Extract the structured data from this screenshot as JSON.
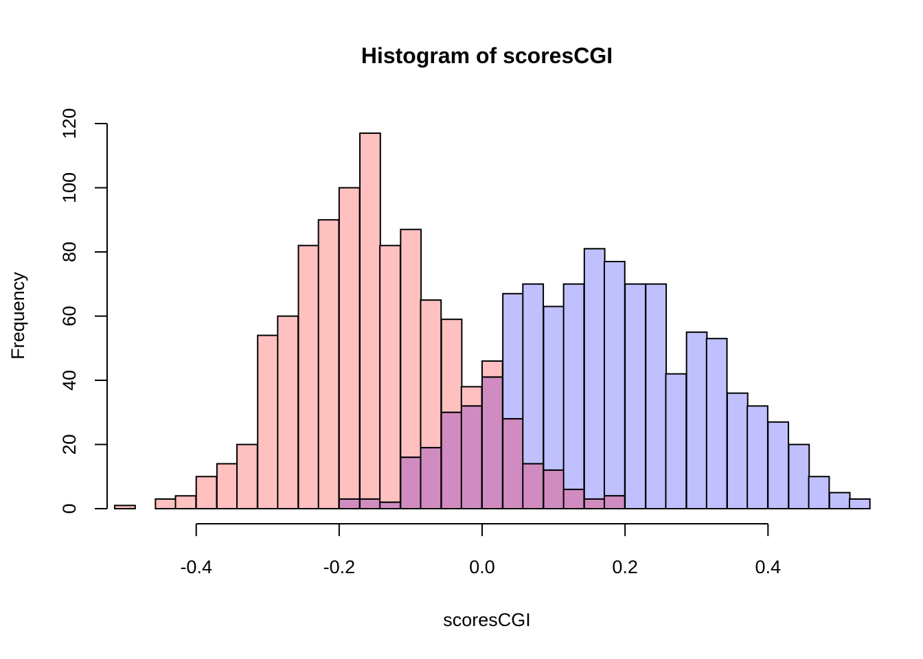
{
  "chart_data": {
    "type": "bar",
    "title": "Histogram of scoresCGI",
    "xlabel": "scoresCGI",
    "ylabel": "Frequency",
    "xlim": [
      -0.54,
      0.54
    ],
    "ylim": [
      0,
      120
    ],
    "x_ticks": [
      "-0.4",
      "-0.2",
      "0.0",
      "0.2",
      "0.4"
    ],
    "x_tick_values": [
      -0.4,
      -0.2,
      0.0,
      0.2,
      0.4
    ],
    "y_ticks": [
      "0",
      "20",
      "40",
      "60",
      "80",
      "100",
      "120"
    ],
    "y_tick_values": [
      0,
      20,
      40,
      60,
      80,
      100,
      120
    ],
    "bin_width": 0.0286,
    "series": [
      {
        "color": "#FFC0C0",
        "bins": [
          {
            "x0": -0.514,
            "value": 1
          },
          {
            "x0": -0.457,
            "value": 3
          },
          {
            "x0": -0.429,
            "value": 4
          },
          {
            "x0": -0.4,
            "value": 10
          },
          {
            "x0": -0.371,
            "value": 14
          },
          {
            "x0": -0.343,
            "value": 20
          },
          {
            "x0": -0.314,
            "value": 54
          },
          {
            "x0": -0.286,
            "value": 60
          },
          {
            "x0": -0.257,
            "value": 82
          },
          {
            "x0": -0.229,
            "value": 90
          },
          {
            "x0": -0.2,
            "value": 100
          },
          {
            "x0": -0.171,
            "value": 117
          },
          {
            "x0": -0.143,
            "value": 82
          },
          {
            "x0": -0.114,
            "value": 87
          },
          {
            "x0": -0.086,
            "value": 65
          },
          {
            "x0": -0.057,
            "value": 59
          },
          {
            "x0": -0.029,
            "value": 38
          },
          {
            "x0": 0.0,
            "value": 46
          },
          {
            "x0": 0.029,
            "value": 28
          },
          {
            "x0": 0.057,
            "value": 14
          },
          {
            "x0": 0.086,
            "value": 12
          },
          {
            "x0": 0.114,
            "value": 6
          },
          {
            "x0": 0.143,
            "value": 3
          },
          {
            "x0": 0.171,
            "value": 4
          }
        ]
      },
      {
        "color": "#C0C0FF",
        "bins": [
          {
            "x0": -0.2,
            "value": 3
          },
          {
            "x0": -0.171,
            "value": 3
          },
          {
            "x0": -0.143,
            "value": 2
          },
          {
            "x0": -0.114,
            "value": 16
          },
          {
            "x0": -0.086,
            "value": 19
          },
          {
            "x0": -0.057,
            "value": 30
          },
          {
            "x0": -0.029,
            "value": 32
          },
          {
            "x0": 0.0,
            "value": 41
          },
          {
            "x0": 0.029,
            "value": 67
          },
          {
            "x0": 0.057,
            "value": 70
          },
          {
            "x0": 0.086,
            "value": 63
          },
          {
            "x0": 0.114,
            "value": 70
          },
          {
            "x0": 0.143,
            "value": 81
          },
          {
            "x0": 0.171,
            "value": 77
          },
          {
            "x0": 0.2,
            "value": 70
          },
          {
            "x0": 0.229,
            "value": 70
          },
          {
            "x0": 0.257,
            "value": 42
          },
          {
            "x0": 0.286,
            "value": 55
          },
          {
            "x0": 0.314,
            "value": 53
          },
          {
            "x0": 0.343,
            "value": 36
          },
          {
            "x0": 0.371,
            "value": 32
          },
          {
            "x0": 0.4,
            "value": 27
          },
          {
            "x0": 0.429,
            "value": 20
          },
          {
            "x0": 0.457,
            "value": 10
          },
          {
            "x0": 0.486,
            "value": 5
          },
          {
            "x0": 0.514,
            "value": 3
          }
        ]
      }
    ],
    "overlap_color": "#D08CC0",
    "grid": false,
    "legend": "none"
  }
}
